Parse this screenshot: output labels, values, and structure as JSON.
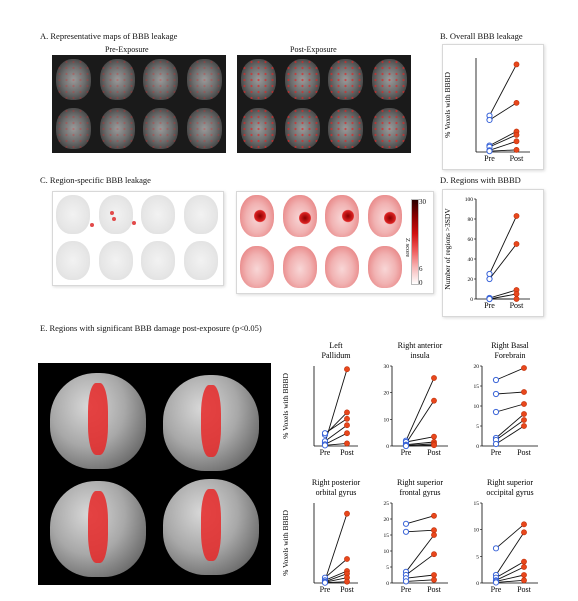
{
  "panels": {
    "A": {
      "title": "A. Representative maps of BBB leakage",
      "pre": "Pre-Exposure",
      "post": "Post-Exposure"
    },
    "B": {
      "title": "B. Overall BBB leakage"
    },
    "C": {
      "title": "C. Region-specific BBB leakage",
      "colorbar": {
        "label": "Z score",
        "ticks": [
          "30",
          "6",
          "0"
        ]
      }
    },
    "D": {
      "title": "D. Regions with BBBD"
    },
    "E": {
      "title": "E. Regions with significant BBB damage post-exposure (p<0.05)"
    }
  },
  "chart_data": [
    {
      "id": "B",
      "type": "line",
      "categories": [
        "Pre",
        "Post"
      ],
      "ylabel": "% Voxels with BBBD",
      "ylim": [
        0,
        22
      ],
      "series": [
        {
          "values": [
            8.5,
            20.5
          ]
        },
        {
          "values": [
            7.5,
            11.5
          ]
        },
        {
          "values": [
            1.5,
            4.8
          ]
        },
        {
          "values": [
            1.2,
            4.0
          ]
        },
        {
          "values": [
            0.4,
            2.5
          ]
        },
        {
          "values": [
            0.2,
            0.5
          ]
        }
      ]
    },
    {
      "id": "D",
      "type": "line",
      "categories": [
        "Pre",
        "Post"
      ],
      "ylabel": "Number of regions >3SDV",
      "ylim": [
        0,
        100
      ],
      "yticks": [
        0,
        20,
        40,
        60,
        80,
        100
      ],
      "series": [
        {
          "values": [
            25,
            83
          ]
        },
        {
          "values": [
            20,
            55
          ]
        },
        {
          "values": [
            1,
            9
          ]
        },
        {
          "values": [
            0,
            5
          ]
        },
        {
          "values": [
            0,
            0
          ]
        }
      ]
    },
    {
      "id": "E1",
      "type": "line",
      "title": "Left\nPallidum",
      "categories": [
        "Pre",
        "Post"
      ],
      "ylabel": "% Voxels with BBBD",
      "ylim": [
        0,
        25
      ],
      "series": [
        {
          "values": [
            1.0,
            24.0
          ]
        },
        {
          "values": [
            3.5,
            10.5
          ]
        },
        {
          "values": [
            4.0,
            8.5
          ]
        },
        {
          "values": [
            1.5,
            6.5
          ]
        },
        {
          "values": [
            0.5,
            4.0
          ]
        },
        {
          "values": [
            0.2,
            0.8
          ]
        }
      ]
    },
    {
      "id": "E2",
      "type": "line",
      "title": "Right anterior\ninsula",
      "categories": [
        "Pre",
        "Post"
      ],
      "ylabel": "",
      "ylim": [
        0,
        30
      ],
      "yticks": [
        0,
        10,
        20,
        30
      ],
      "series": [
        {
          "values": [
            2.0,
            25.5
          ]
        },
        {
          "values": [
            1.0,
            17.0
          ]
        },
        {
          "values": [
            1.5,
            3.5
          ]
        },
        {
          "values": [
            0.5,
            1.5
          ]
        },
        {
          "values": [
            0.2,
            0.8
          ]
        },
        {
          "values": [
            0.0,
            0.3
          ]
        }
      ]
    },
    {
      "id": "E3",
      "type": "line",
      "title": "Right Basal\nForebrain",
      "categories": [
        "Pre",
        "Post"
      ],
      "ylabel": "",
      "ylim": [
        0,
        20
      ],
      "yticks": [
        0,
        5,
        10,
        15,
        20
      ],
      "series": [
        {
          "values": [
            16.5,
            19.5
          ]
        },
        {
          "values": [
            13.0,
            13.5
          ]
        },
        {
          "values": [
            8.5,
            10.5
          ]
        },
        {
          "values": [
            2.0,
            8.0
          ]
        },
        {
          "values": [
            1.5,
            6.5
          ]
        },
        {
          "values": [
            0.5,
            5.0
          ]
        }
      ]
    },
    {
      "id": "E4",
      "type": "line",
      "title": "Right posterior\norbital gyrus",
      "categories": [
        "Pre",
        "Post"
      ],
      "ylabel": "% Voxels with BBBD",
      "ylim": [
        0,
        30
      ],
      "series": [
        {
          "values": [
            1.0,
            26.0
          ]
        },
        {
          "values": [
            2.0,
            9.0
          ]
        },
        {
          "values": [
            1.0,
            4.5
          ]
        },
        {
          "values": [
            0.5,
            3.5
          ]
        },
        {
          "values": [
            0.3,
            2.0
          ]
        },
        {
          "values": [
            0.1,
            0.5
          ]
        }
      ]
    },
    {
      "id": "E5",
      "type": "line",
      "title": "Right superior\nfrontal gyrus",
      "categories": [
        "Pre",
        "Post"
      ],
      "ylabel": "",
      "ylim": [
        0,
        25
      ],
      "yticks": [
        0,
        5,
        10,
        15,
        20,
        25
      ],
      "series": [
        {
          "values": [
            18.5,
            21.0
          ]
        },
        {
          "values": [
            16.0,
            16.5
          ]
        },
        {
          "values": [
            3.5,
            15.0
          ]
        },
        {
          "values": [
            2.5,
            9.0
          ]
        },
        {
          "values": [
            1.5,
            2.5
          ]
        },
        {
          "values": [
            0.5,
            1.0
          ]
        }
      ]
    },
    {
      "id": "E6",
      "type": "line",
      "title": "Right superior\noccipital gyrus",
      "categories": [
        "Pre",
        "Post"
      ],
      "ylabel": "",
      "ylim": [
        0,
        15
      ],
      "yticks": [
        0,
        5,
        10,
        15
      ],
      "series": [
        {
          "values": [
            6.5,
            11.0
          ]
        },
        {
          "values": [
            1.5,
            9.5
          ]
        },
        {
          "values": [
            1.0,
            4.0
          ]
        },
        {
          "values": [
            0.5,
            3.0
          ]
        },
        {
          "values": [
            0.3,
            1.5
          ]
        },
        {
          "values": [
            0.1,
            0.5
          ]
        }
      ]
    }
  ]
}
